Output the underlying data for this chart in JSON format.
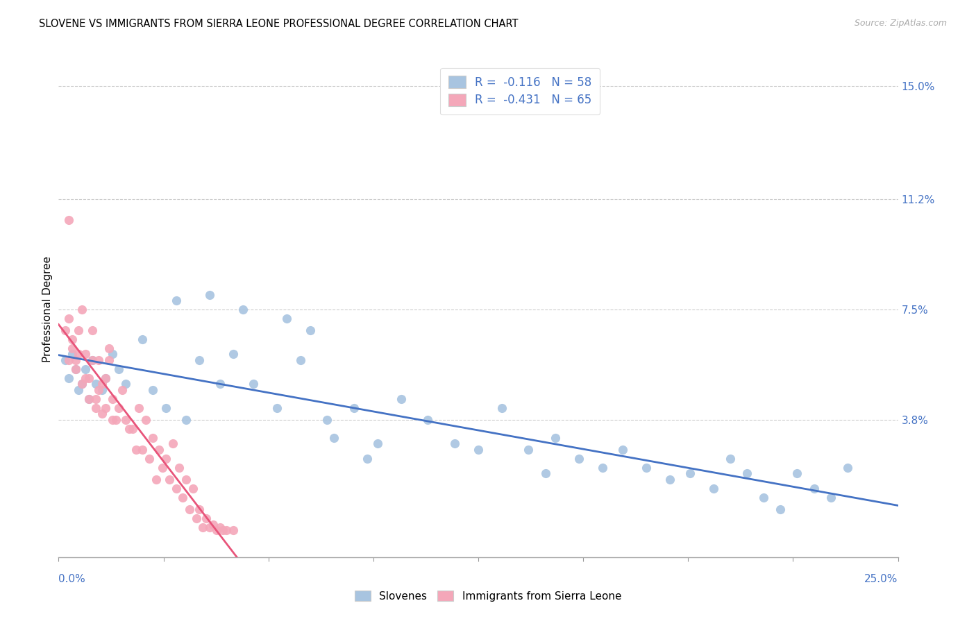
{
  "title": "SLOVENE VS IMMIGRANTS FROM SIERRA LEONE PROFESSIONAL DEGREE CORRELATION CHART",
  "source": "Source: ZipAtlas.com",
  "ylabel": "Professional Degree",
  "xmin": 0.0,
  "xmax": 0.25,
  "ymin": -0.008,
  "ymax": 0.158,
  "blue_R": -0.116,
  "blue_N": 58,
  "pink_R": -0.431,
  "pink_N": 65,
  "blue_color": "#a8c4e0",
  "pink_color": "#f4a7b9",
  "blue_line_color": "#4472c4",
  "pink_line_color": "#e8547a",
  "legend_label_blue": "Slovenes",
  "legend_label_pink": "Immigrants from Sierra Leone",
  "ytick_vals": [
    0.038,
    0.075,
    0.112,
    0.15
  ],
  "ytick_labels": [
    "3.8%",
    "7.5%",
    "11.2%",
    "15.0%"
  ],
  "blue_scatter_x": [
    0.002,
    0.003,
    0.004,
    0.005,
    0.006,
    0.007,
    0.008,
    0.009,
    0.01,
    0.011,
    0.013,
    0.014,
    0.016,
    0.018,
    0.02,
    0.025,
    0.028,
    0.032,
    0.038,
    0.042,
    0.048,
    0.052,
    0.058,
    0.065,
    0.072,
    0.08,
    0.088,
    0.095,
    0.102,
    0.11,
    0.118,
    0.125,
    0.132,
    0.14,
    0.148,
    0.155,
    0.162,
    0.168,
    0.175,
    0.182,
    0.188,
    0.195,
    0.2,
    0.205,
    0.21,
    0.215,
    0.22,
    0.225,
    0.23,
    0.235,
    0.035,
    0.045,
    0.055,
    0.068,
    0.075,
    0.082,
    0.092,
    0.145
  ],
  "blue_scatter_y": [
    0.058,
    0.052,
    0.06,
    0.055,
    0.048,
    0.05,
    0.055,
    0.045,
    0.058,
    0.05,
    0.048,
    0.052,
    0.06,
    0.055,
    0.05,
    0.065,
    0.048,
    0.042,
    0.038,
    0.058,
    0.05,
    0.06,
    0.05,
    0.042,
    0.058,
    0.038,
    0.042,
    0.03,
    0.045,
    0.038,
    0.03,
    0.028,
    0.042,
    0.028,
    0.032,
    0.025,
    0.022,
    0.028,
    0.022,
    0.018,
    0.02,
    0.015,
    0.025,
    0.02,
    0.012,
    0.008,
    0.02,
    0.015,
    0.012,
    0.022,
    0.078,
    0.08,
    0.075,
    0.072,
    0.068,
    0.032,
    0.025,
    0.02
  ],
  "pink_scatter_x": [
    0.002,
    0.003,
    0.004,
    0.005,
    0.006,
    0.007,
    0.008,
    0.009,
    0.01,
    0.011,
    0.012,
    0.013,
    0.014,
    0.015,
    0.016,
    0.017,
    0.018,
    0.019,
    0.02,
    0.021,
    0.022,
    0.023,
    0.024,
    0.025,
    0.026,
    0.027,
    0.028,
    0.029,
    0.03,
    0.031,
    0.032,
    0.033,
    0.034,
    0.035,
    0.036,
    0.037,
    0.038,
    0.039,
    0.04,
    0.041,
    0.042,
    0.043,
    0.044,
    0.045,
    0.046,
    0.047,
    0.048,
    0.049,
    0.05,
    0.052,
    0.003,
    0.004,
    0.005,
    0.006,
    0.007,
    0.008,
    0.009,
    0.01,
    0.011,
    0.012,
    0.013,
    0.014,
    0.015,
    0.016,
    0.003
  ],
  "pink_scatter_y": [
    0.068,
    0.058,
    0.062,
    0.055,
    0.06,
    0.05,
    0.052,
    0.045,
    0.058,
    0.042,
    0.048,
    0.04,
    0.052,
    0.058,
    0.045,
    0.038,
    0.042,
    0.048,
    0.038,
    0.035,
    0.035,
    0.028,
    0.042,
    0.028,
    0.038,
    0.025,
    0.032,
    0.018,
    0.028,
    0.022,
    0.025,
    0.018,
    0.03,
    0.015,
    0.022,
    0.012,
    0.018,
    0.008,
    0.015,
    0.005,
    0.008,
    0.002,
    0.005,
    0.002,
    0.003,
    0.001,
    0.002,
    0.001,
    0.001,
    0.001,
    0.072,
    0.065,
    0.058,
    0.068,
    0.075,
    0.06,
    0.052,
    0.068,
    0.045,
    0.058,
    0.05,
    0.042,
    0.062,
    0.038,
    0.105
  ]
}
